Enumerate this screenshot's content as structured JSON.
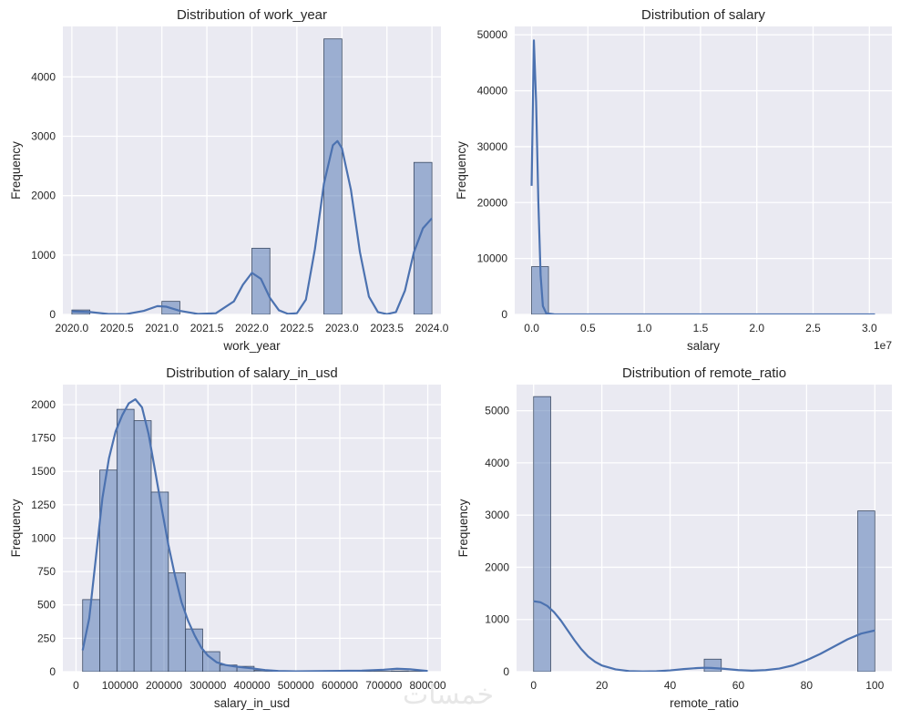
{
  "figure": {
    "watermark_text": "خمسات"
  },
  "chart_data": [
    {
      "type": "histogram",
      "title": "Distribution of work_year",
      "xlabel": "work_year",
      "ylabel": "Frequency",
      "xlim": [
        2019.9,
        2024.1
      ],
      "ylim": [
        0,
        4850
      ],
      "xticks": [
        2020.0,
        2020.5,
        2021.0,
        2021.5,
        2022.0,
        2022.5,
        2023.0,
        2023.5,
        2024.0
      ],
      "xtick_labels": [
        "2020.0",
        "2020.5",
        "2021.0",
        "2021.5",
        "2022.0",
        "2022.5",
        "2023.0",
        "2023.5",
        "2024.0"
      ],
      "yticks": [
        0,
        1000,
        2000,
        3000,
        4000
      ],
      "ytick_labels": [
        "0",
        "1000",
        "2000",
        "3000",
        "4000"
      ],
      "bins": [
        {
          "x0": 2020.0,
          "x1": 2020.2,
          "count": 75
        },
        {
          "x0": 2021.0,
          "x1": 2021.2,
          "count": 220
        },
        {
          "x0": 2022.0,
          "x1": 2022.2,
          "count": 1115
        },
        {
          "x0": 2022.8,
          "x1": 2023.0,
          "count": 4640
        },
        {
          "x0": 2023.8,
          "x1": 2024.0,
          "count": 2560
        }
      ],
      "kde": [
        [
          2020.0,
          50
        ],
        [
          2020.2,
          40
        ],
        [
          2020.4,
          8
        ],
        [
          2020.6,
          5
        ],
        [
          2020.8,
          60
        ],
        [
          2020.95,
          140
        ],
        [
          2021.05,
          130
        ],
        [
          2021.2,
          60
        ],
        [
          2021.4,
          8
        ],
        [
          2021.6,
          20
        ],
        [
          2021.8,
          220
        ],
        [
          2021.9,
          500
        ],
        [
          2022.0,
          700
        ],
        [
          2022.1,
          600
        ],
        [
          2022.2,
          280
        ],
        [
          2022.3,
          70
        ],
        [
          2022.4,
          10
        ],
        [
          2022.5,
          20
        ],
        [
          2022.6,
          250
        ],
        [
          2022.7,
          1100
        ],
        [
          2022.8,
          2200
        ],
        [
          2022.9,
          2850
        ],
        [
          2022.95,
          2920
        ],
        [
          2023.0,
          2800
        ],
        [
          2023.1,
          2100
        ],
        [
          2023.2,
          1050
        ],
        [
          2023.3,
          300
        ],
        [
          2023.4,
          40
        ],
        [
          2023.5,
          5
        ],
        [
          2023.6,
          40
        ],
        [
          2023.7,
          400
        ],
        [
          2023.8,
          1050
        ],
        [
          2023.9,
          1450
        ],
        [
          2024.0,
          1620
        ]
      ]
    },
    {
      "type": "histogram",
      "title": "Distribution of salary",
      "xlabel": "salary",
      "ylabel": "Frequency",
      "offset_label": "1e7",
      "xlim": [
        -0.15,
        3.2
      ],
      "ylim": [
        0,
        51500
      ],
      "xticks": [
        0,
        0.5,
        1.0,
        1.5,
        2.0,
        2.5,
        3.0
      ],
      "xtick_labels": [
        "0.0",
        "0.5",
        "1.0",
        "1.5",
        "2.0",
        "2.5",
        "3.0"
      ],
      "yticks": [
        0,
        10000,
        20000,
        30000,
        40000,
        50000
      ],
      "ytick_labels": [
        "0",
        "10000",
        "20000",
        "30000",
        "40000",
        "50000"
      ],
      "bins": [
        {
          "x0": 0.0,
          "x1": 0.15,
          "count": 8550
        }
      ],
      "kde": [
        [
          0.0,
          23000
        ],
        [
          0.02,
          49000
        ],
        [
          0.04,
          38000
        ],
        [
          0.06,
          20000
        ],
        [
          0.08,
          7000
        ],
        [
          0.1,
          1500
        ],
        [
          0.13,
          200
        ],
        [
          0.2,
          20
        ],
        [
          0.5,
          0
        ],
        [
          3.05,
          0
        ]
      ]
    },
    {
      "type": "histogram",
      "title": "Distribution of salary_in_usd",
      "xlabel": "salary_in_usd",
      "ylabel": "Frequency",
      "xlim": [
        -30000,
        830000
      ],
      "ylim": [
        0,
        2150
      ],
      "xticks": [
        0,
        100000,
        200000,
        300000,
        400000,
        500000,
        600000,
        700000,
        800000
      ],
      "xtick_labels": [
        "0",
        "100000",
        "200000",
        "300000",
        "400000",
        "500000",
        "600000",
        "700000",
        "800000"
      ],
      "yticks": [
        0,
        250,
        500,
        750,
        1000,
        1250,
        1500,
        1750,
        2000
      ],
      "ytick_labels": [
        "0",
        "250",
        "500",
        "750",
        "1000",
        "1250",
        "1500",
        "1750",
        "2000"
      ],
      "bins": [
        {
          "x0": 15000,
          "x1": 54000,
          "count": 540
        },
        {
          "x0": 54000,
          "x1": 93000,
          "count": 1510
        },
        {
          "x0": 93000,
          "x1": 132000,
          "count": 1965
        },
        {
          "x0": 132000,
          "x1": 171000,
          "count": 1880
        },
        {
          "x0": 171000,
          "x1": 210000,
          "count": 1345
        },
        {
          "x0": 210000,
          "x1": 249000,
          "count": 740
        },
        {
          "x0": 249000,
          "x1": 288000,
          "count": 320
        },
        {
          "x0": 288000,
          "x1": 327000,
          "count": 150
        },
        {
          "x0": 327000,
          "x1": 366000,
          "count": 50
        },
        {
          "x0": 366000,
          "x1": 405000,
          "count": 40
        },
        {
          "x0": 405000,
          "x1": 444000,
          "count": 10
        },
        {
          "x0": 444000,
          "x1": 483000,
          "count": 5
        },
        {
          "x0": 483000,
          "x1": 522000,
          "count": 3
        },
        {
          "x0": 522000,
          "x1": 561000,
          "count": 2
        },
        {
          "x0": 561000,
          "x1": 600000,
          "count": 2
        },
        {
          "x0": 600000,
          "x1": 639000,
          "count": 2
        },
        {
          "x0": 639000,
          "x1": 678000,
          "count": 2
        },
        {
          "x0": 678000,
          "x1": 717000,
          "count": 3
        },
        {
          "x0": 717000,
          "x1": 756000,
          "count": 5
        },
        {
          "x0": 756000,
          "x1": 795000,
          "count": 3
        }
      ],
      "kde": [
        [
          15000,
          160
        ],
        [
          30000,
          400
        ],
        [
          45000,
          850
        ],
        [
          60000,
          1300
        ],
        [
          75000,
          1600
        ],
        [
          90000,
          1800
        ],
        [
          105000,
          1920
        ],
        [
          120000,
          2010
        ],
        [
          135000,
          2040
        ],
        [
          150000,
          1980
        ],
        [
          165000,
          1780
        ],
        [
          180000,
          1500
        ],
        [
          195000,
          1220
        ],
        [
          210000,
          950
        ],
        [
          225000,
          720
        ],
        [
          240000,
          520
        ],
        [
          255000,
          380
        ],
        [
          270000,
          270
        ],
        [
          285000,
          180
        ],
        [
          300000,
          120
        ],
        [
          320000,
          70
        ],
        [
          340000,
          50
        ],
        [
          360000,
          40
        ],
        [
          380000,
          32
        ],
        [
          400000,
          25
        ],
        [
          430000,
          12
        ],
        [
          460000,
          5
        ],
        [
          500000,
          3
        ],
        [
          550000,
          4
        ],
        [
          600000,
          6
        ],
        [
          650000,
          8
        ],
        [
          700000,
          15
        ],
        [
          730000,
          22
        ],
        [
          760000,
          18
        ],
        [
          800000,
          5
        ]
      ]
    },
    {
      "type": "histogram",
      "title": "Distribution of remote_ratio",
      "xlabel": "remote_ratio",
      "ylabel": "Frequency",
      "xlim": [
        -5,
        105
      ],
      "ylim": [
        0,
        5500
      ],
      "xticks": [
        0,
        20,
        40,
        60,
        80,
        100
      ],
      "xtick_labels": [
        "0",
        "20",
        "40",
        "60",
        "80",
        "100"
      ],
      "yticks": [
        0,
        1000,
        2000,
        3000,
        4000,
        5000
      ],
      "ytick_labels": [
        "0",
        "1000",
        "2000",
        "3000",
        "4000",
        "5000"
      ],
      "bins": [
        {
          "x0": 0,
          "x1": 5,
          "count": 5270
        },
        {
          "x0": 50,
          "x1": 55,
          "count": 240
        },
        {
          "x0": 95,
          "x1": 100,
          "count": 3080
        }
      ],
      "kde": [
        [
          0,
          1350
        ],
        [
          2,
          1330
        ],
        [
          4,
          1260
        ],
        [
          6,
          1140
        ],
        [
          8,
          980
        ],
        [
          10,
          790
        ],
        [
          12,
          600
        ],
        [
          14,
          430
        ],
        [
          16,
          290
        ],
        [
          18,
          190
        ],
        [
          20,
          120
        ],
        [
          24,
          45
        ],
        [
          28,
          12
        ],
        [
          32,
          5
        ],
        [
          36,
          10
        ],
        [
          40,
          25
        ],
        [
          44,
          50
        ],
        [
          48,
          70
        ],
        [
          50,
          75
        ],
        [
          52,
          72
        ],
        [
          56,
          55
        ],
        [
          60,
          30
        ],
        [
          64,
          20
        ],
        [
          68,
          30
        ],
        [
          72,
          60
        ],
        [
          76,
          120
        ],
        [
          80,
          220
        ],
        [
          84,
          340
        ],
        [
          88,
          480
        ],
        [
          92,
          620
        ],
        [
          96,
          730
        ],
        [
          100,
          790
        ]
      ]
    }
  ]
}
